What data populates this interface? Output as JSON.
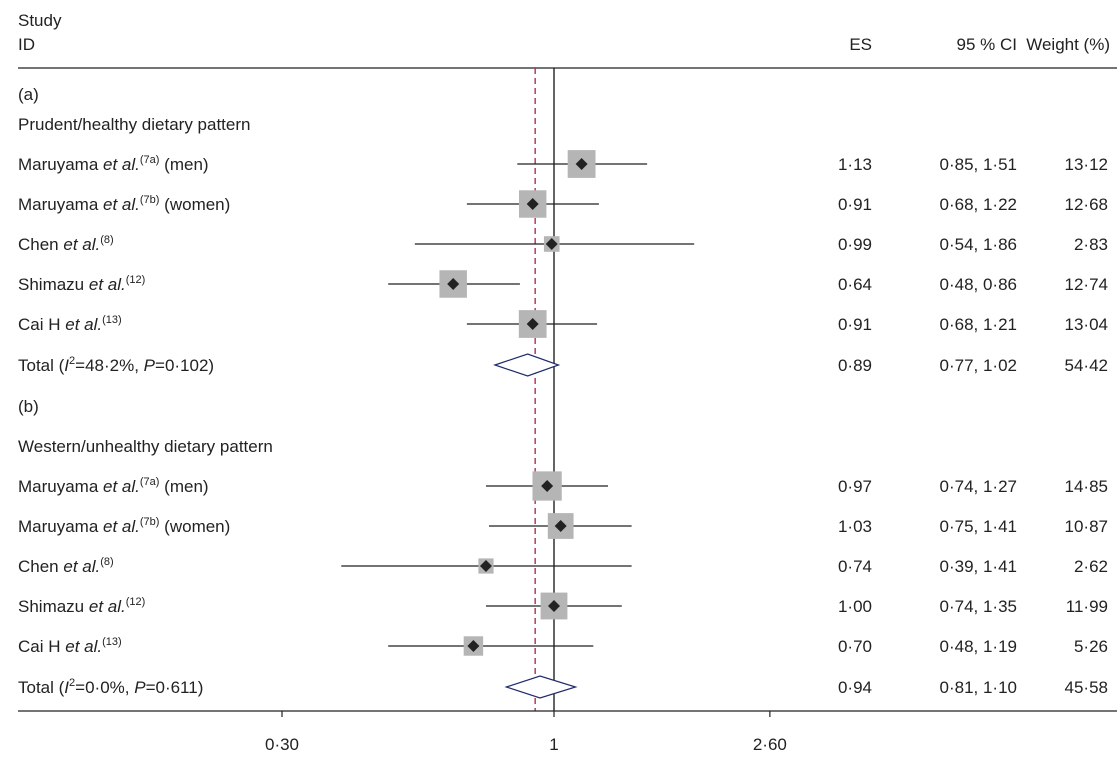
{
  "chart_data": {
    "type": "forest",
    "header": {
      "study_line1": "Study",
      "study_line2": "ID",
      "es": "ES",
      "ci": "95 % CI",
      "weight": "Weight (%)"
    },
    "x_scale": "log",
    "x_ticks": [
      "0·30",
      "1",
      "2·60"
    ],
    "x_tick_values": [
      0.3,
      1,
      2.6
    ],
    "reference_line": 1,
    "overall_dashed_line": 0.92,
    "rows": [
      {
        "type": "label",
        "text": "(a)"
      },
      {
        "type": "label",
        "text": "Prudent/healthy dietary pattern"
      },
      {
        "type": "study",
        "author": "Maruyama ",
        "etal": "et al.",
        "ref": "(7a)",
        "suffix": " (men)",
        "es": 1.13,
        "lo": 0.85,
        "hi": 1.51,
        "weight": 13.12,
        "es_text": "1·13",
        "ci_text": "0·85, 1·51",
        "w_text": "13·12"
      },
      {
        "type": "study",
        "author": "Maruyama ",
        "etal": "et al.",
        "ref": "(7b)",
        "suffix": " (women)",
        "es": 0.91,
        "lo": 0.68,
        "hi": 1.22,
        "weight": 12.68,
        "es_text": "0·91",
        "ci_text": "0·68, 1·22",
        "w_text": "12·68"
      },
      {
        "type": "study",
        "author": "Chen ",
        "etal": "et al.",
        "ref": "(8)",
        "suffix": "",
        "es": 0.99,
        "lo": 0.54,
        "hi": 1.86,
        "weight": 2.83,
        "es_text": "0·99",
        "ci_text": "0·54, 1·86",
        "w_text": "2·83"
      },
      {
        "type": "study",
        "author": "Shimazu ",
        "etal": "et al.",
        "ref": "(12)",
        "suffix": "",
        "es": 0.64,
        "lo": 0.48,
        "hi": 0.86,
        "weight": 12.74,
        "es_text": "0·64",
        "ci_text": "0·48, 0·86",
        "w_text": "12·74"
      },
      {
        "type": "study",
        "author": "Cai H ",
        "etal": "et al.",
        "ref": "(13)",
        "suffix": "",
        "es": 0.91,
        "lo": 0.68,
        "hi": 1.21,
        "weight": 13.04,
        "es_text": "0·91",
        "ci_text": "0·68, 1·21",
        "w_text": "13·04"
      },
      {
        "type": "total",
        "i2": "48·2%",
        "p": "0·102",
        "es": 0.89,
        "lo": 0.77,
        "hi": 1.02,
        "es_text": "0·89",
        "ci_text": "0·77, 1·02",
        "w_text": "54·42"
      },
      {
        "type": "label",
        "text": "(b)"
      },
      {
        "type": "label",
        "text": "Western/unhealthy dietary pattern"
      },
      {
        "type": "study",
        "author": "Maruyama ",
        "etal": "et al.",
        "ref": "(7a)",
        "suffix": " (men)",
        "es": 0.97,
        "lo": 0.74,
        "hi": 1.27,
        "weight": 14.85,
        "es_text": "0·97",
        "ci_text": "0·74, 1·27",
        "w_text": "14·85"
      },
      {
        "type": "study",
        "author": "Maruyama ",
        "etal": "et al.",
        "ref": "(7b)",
        "suffix": " (women)",
        "es": 1.03,
        "lo": 0.75,
        "hi": 1.41,
        "weight": 10.87,
        "es_text": "1·03",
        "ci_text": "0·75, 1·41",
        "w_text": "10·87"
      },
      {
        "type": "study",
        "author": "Chen ",
        "etal": "et al.",
        "ref": "(8)",
        "suffix": "",
        "es": 0.74,
        "lo": 0.39,
        "hi": 1.41,
        "weight": 2.62,
        "es_text": "0·74",
        "ci_text": "0·39, 1·41",
        "w_text": "2·62"
      },
      {
        "type": "study",
        "author": "Shimazu ",
        "etal": "et al.",
        "ref": "(12)",
        "suffix": "",
        "es": 1.0,
        "lo": 0.74,
        "hi": 1.35,
        "weight": 11.99,
        "es_text": "1·00",
        "ci_text": "0·74, 1·35",
        "w_text": "11·99"
      },
      {
        "type": "study",
        "author": "Cai H ",
        "etal": "et al.",
        "ref": "(13)",
        "suffix": "",
        "es": 0.7,
        "lo": 0.48,
        "hi": 1.19,
        "weight": 5.26,
        "es_text": "0·70",
        "ci_text": "0·48, 1·19",
        "w_text": "5·26"
      },
      {
        "type": "total",
        "i2": "0·0%",
        "p": "0·611",
        "es": 0.94,
        "lo": 0.81,
        "hi": 1.1,
        "es_text": "0·94",
        "ci_text": "0·81, 1·10",
        "w_text": "45·58"
      }
    ]
  }
}
